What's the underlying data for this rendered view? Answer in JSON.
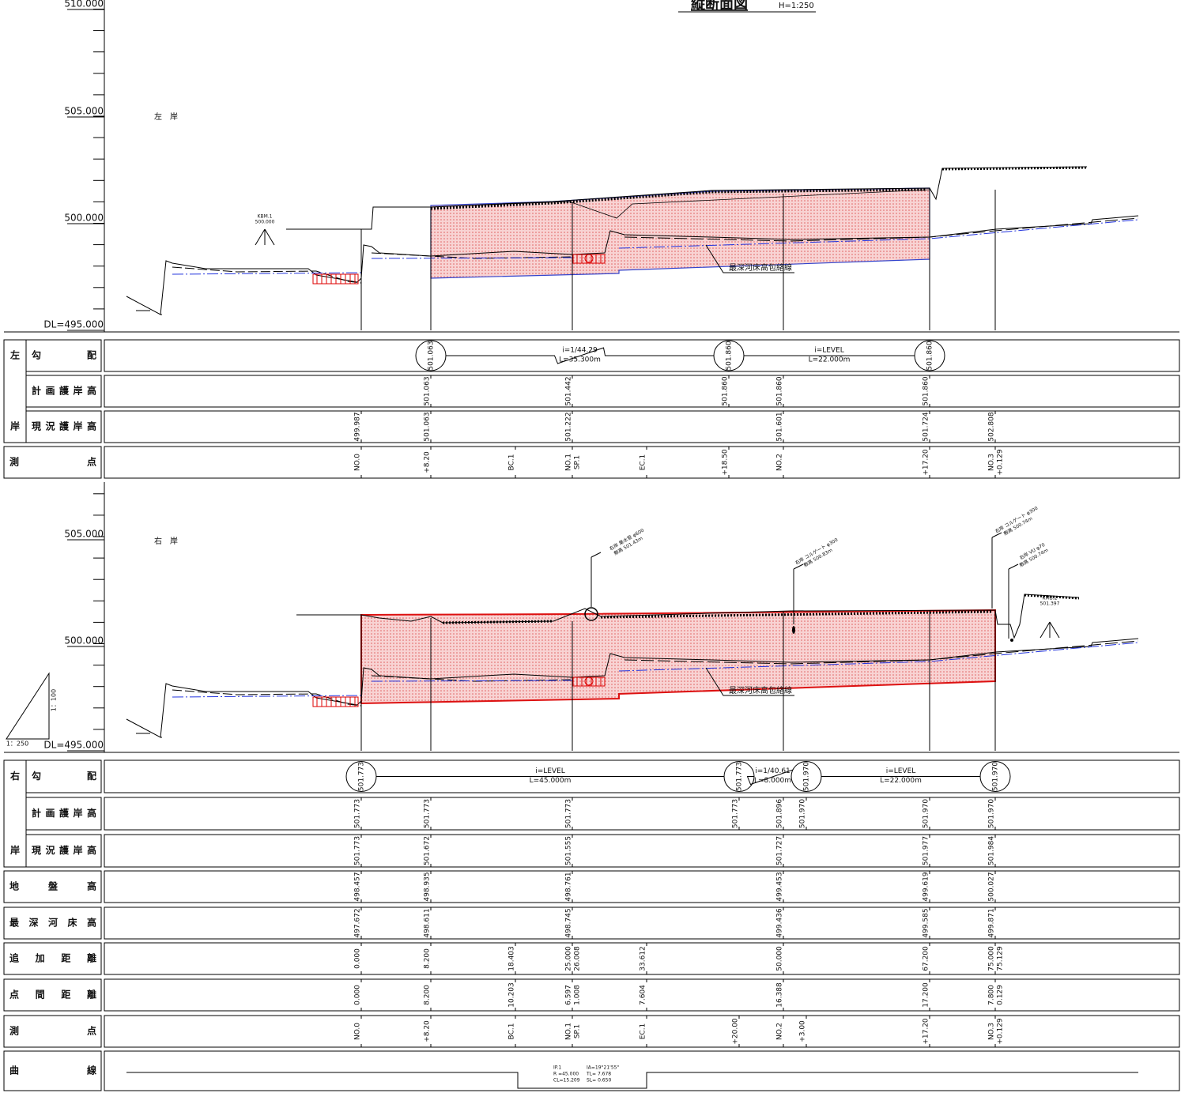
{
  "title": "縦断面図",
  "scale": "H=1:250",
  "upper": {
    "side": "左　岸",
    "axis": [
      "510.000",
      "505.000",
      "500.000",
      "DL=495.000"
    ],
    "bm": [
      "KBM.1",
      "500.000"
    ],
    "envelope": "最深河床高包絡線",
    "bank": [
      "左",
      "岸"
    ],
    "row_labels": [
      "勾配",
      "計画護岸高",
      "現況護岸高",
      "測点"
    ],
    "gradient": {
      "circles": [
        "501.063",
        "501.860",
        "501.860"
      ],
      "segments": [
        [
          "i=1/44.29",
          "L=35.300m"
        ],
        [
          "i=LEVEL",
          "L=22.000m"
        ]
      ]
    },
    "planned": [
      null,
      "501.063",
      null,
      "501.442",
      null,
      "501.860",
      "501.860",
      "501.860",
      null
    ],
    "existing": [
      "499.987",
      "501.063",
      null,
      "501.222",
      null,
      null,
      "501.601",
      "501.724",
      "502.808"
    ],
    "stations": [
      "NO.0",
      "+8.20",
      "BC.1",
      [
        "NO.1",
        "SP.1"
      ],
      "EC.1",
      "+18.50",
      "NO.2",
      "+17.20",
      [
        "NO.3",
        "+0.129"
      ]
    ]
  },
  "lower": {
    "side": "右　岸",
    "axis": [
      "505.000",
      "500.000",
      "DL=495.000"
    ],
    "bm": [
      "KMB.2",
      "501.397"
    ],
    "envelope": "最深河床高包絡線",
    "bank": [
      "右",
      "岸"
    ],
    "scale_marks": [
      "1：100",
      "1：250"
    ],
    "pipes": [
      [
        "右岸 集水管 φ600",
        "敷高 501.43m"
      ],
      [
        "右岸 コルゲート φ300",
        "敷高 500.83m"
      ],
      [
        "右岸 コルゲート φ300",
        "敷高 500.74m"
      ],
      [
        "右岸 VU φ70",
        "敷高 500.74m"
      ]
    ],
    "row_labels": [
      "勾配",
      "計画護岸高",
      "現況護岸高",
      "地盤高",
      "最深河床高",
      "追加距離",
      "点間距離",
      "測点",
      "曲線"
    ],
    "gradient": {
      "circles": [
        "501.773",
        "501.773",
        "501.970",
        "501.970"
      ],
      "segments": [
        [
          "i=LEVEL",
          "L=45.000m"
        ],
        [
          "i=1/40.61",
          "L=8.000m"
        ],
        [
          "i=LEVEL",
          "L=22.000m"
        ]
      ]
    },
    "planned": [
      "501.773",
      "501.773",
      null,
      "501.773",
      null,
      "501.773",
      "501.896",
      "501.970",
      "501.970",
      "501.970"
    ],
    "existing": [
      "501.773",
      "501.672",
      null,
      "501.555",
      null,
      null,
      "501.727",
      null,
      "501.977",
      "501.984"
    ],
    "ground": [
      "498.457",
      "498.935",
      null,
      "498.761",
      null,
      null,
      "499.453",
      null,
      "499.619",
      "500.027"
    ],
    "deepest": [
      "497.672",
      "498.611",
      null,
      "498.745",
      null,
      null,
      "499.436",
      null,
      "499.585",
      "499.871"
    ],
    "cumulative": [
      "0.000",
      "8.200",
      "18.403",
      [
        "25.000",
        "26.008"
      ],
      "33.612",
      null,
      "50.000",
      null,
      "67.200",
      [
        "75.000",
        "75.129"
      ]
    ],
    "interval": [
      "0.000",
      "8.200",
      "10.203",
      [
        "6.597",
        "1.008"
      ],
      "7.604",
      null,
      "16.388",
      null,
      "17.200",
      [
        "7.800",
        "0.129"
      ]
    ],
    "stations": [
      "NO.0",
      "+8.20",
      "BC.1",
      [
        "NO.1",
        "SP.1"
      ],
      "EC.1",
      "+20.00",
      "NO.2",
      "+3.00",
      "+17.20",
      [
        "NO.3",
        "+0.129"
      ]
    ],
    "curve": [
      [
        "IP.1",
        "R =45.000",
        "CL=15.209"
      ],
      [
        "IA=19°21'55\"",
        "TL= 7.678",
        "SL= 0.650"
      ]
    ]
  }
}
